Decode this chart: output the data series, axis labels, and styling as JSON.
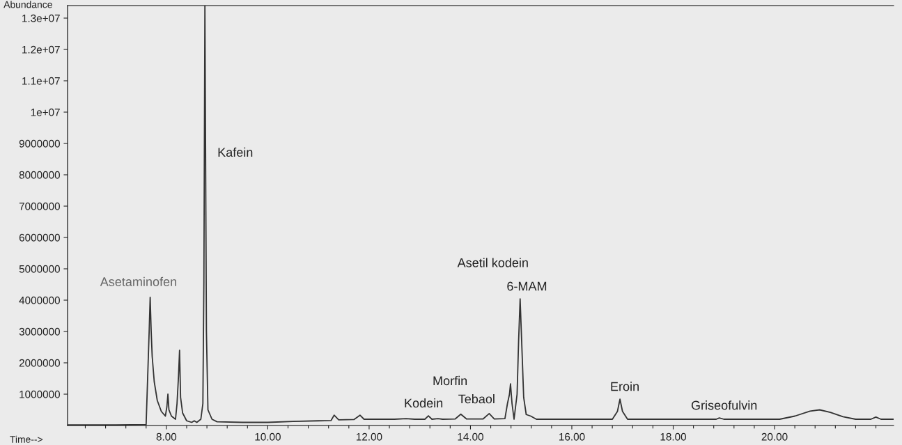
{
  "chart_data": {
    "type": "line",
    "xlabel": "Time-->",
    "ylabel": "Abundance",
    "series": [
      {
        "color": "#333333",
        "x": [
          6.05,
          7.0,
          7.6,
          7.63,
          7.66,
          7.68,
          7.7,
          7.72,
          7.76,
          7.82,
          7.9,
          7.98,
          8.01,
          8.03,
          8.05,
          8.1,
          8.18,
          8.21,
          8.24,
          8.26,
          8.28,
          8.32,
          8.4,
          8.5,
          8.55,
          8.6,
          8.68,
          8.72,
          8.74,
          8.76,
          8.79,
          8.82,
          8.9,
          9.0,
          9.5,
          10.0,
          10.5,
          11.0,
          11.25,
          11.31,
          11.4,
          11.7,
          11.82,
          11.9,
          12.5,
          12.73,
          12.9,
          13.1,
          13.17,
          13.24,
          13.36,
          13.45,
          13.7,
          13.81,
          13.92,
          14.25,
          14.37,
          14.47,
          14.68,
          14.73,
          14.77,
          14.79,
          14.82,
          14.86,
          14.92,
          14.95,
          14.98,
          15.01,
          15.05,
          15.1,
          15.19,
          15.3,
          16.0,
          16.8,
          16.9,
          16.95,
          17.0,
          17.1,
          18.0,
          18.85,
          18.91,
          19.0,
          20.1,
          20.4,
          20.7,
          20.89,
          21.1,
          21.35,
          21.6,
          21.9,
          22.0,
          22.1,
          22.35
        ],
        "values": [
          20000,
          20000,
          30000,
          1500000,
          3000000,
          4090000,
          3000000,
          2200000,
          1400000,
          800000,
          450000,
          300000,
          600000,
          1000000,
          500000,
          300000,
          200000,
          700000,
          1600000,
          2400000,
          900000,
          400000,
          150000,
          100000,
          150000,
          100000,
          200000,
          700000,
          4600000,
          13400000,
          3000000,
          500000,
          200000,
          120000,
          100000,
          100000,
          130000,
          150000,
          160000,
          330000,
          180000,
          190000,
          330000,
          200000,
          200000,
          220000,
          200000,
          200000,
          310000,
          200000,
          220000,
          200000,
          210000,
          360000,
          210000,
          210000,
          380000,
          210000,
          220000,
          700000,
          1000000,
          1330000,
          700000,
          200000,
          1000000,
          2700000,
          4040000,
          2700000,
          900000,
          350000,
          300000,
          200000,
          200000,
          200000,
          450000,
          840000,
          450000,
          200000,
          200000,
          200000,
          240000,
          200000,
          200000,
          300000,
          460000,
          500000,
          420000,
          280000,
          200000,
          200000,
          270000,
          200000,
          200000
        ]
      }
    ],
    "xlim": [
      6.05,
      22.35
    ],
    "xticks": [
      {
        "value": 6.4,
        "label": null
      },
      {
        "value": 6.8,
        "label": null
      },
      {
        "value": 7.2,
        "label": null
      },
      {
        "value": 7.6,
        "label": null
      },
      {
        "value": 8,
        "label": "8.00"
      },
      {
        "value": 8.4,
        "label": null
      },
      {
        "value": 8.8,
        "label": null
      },
      {
        "value": 9.2,
        "label": null
      },
      {
        "value": 9.6,
        "label": null
      },
      {
        "value": 10,
        "label": "10.00"
      },
      {
        "value": 10.4,
        "label": null
      },
      {
        "value": 10.8,
        "label": null
      },
      {
        "value": 11.2,
        "label": null
      },
      {
        "value": 11.6,
        "label": null
      },
      {
        "value": 12,
        "label": "12.00"
      },
      {
        "value": 12.4,
        "label": null
      },
      {
        "value": 12.8,
        "label": null
      },
      {
        "value": 13.2,
        "label": null
      },
      {
        "value": 13.6,
        "label": null
      },
      {
        "value": 14,
        "label": "14.00"
      },
      {
        "value": 14.4,
        "label": null
      },
      {
        "value": 14.8,
        "label": null
      },
      {
        "value": 15.2,
        "label": null
      },
      {
        "value": 15.6,
        "label": null
      },
      {
        "value": 16,
        "label": "16.00"
      },
      {
        "value": 16.4,
        "label": null
      },
      {
        "value": 16.8,
        "label": null
      },
      {
        "value": 17.2,
        "label": null
      },
      {
        "value": 17.6,
        "label": null
      },
      {
        "value": 18,
        "label": "18.00"
      },
      {
        "value": 18.4,
        "label": null
      },
      {
        "value": 18.8,
        "label": null
      },
      {
        "value": 19.2,
        "label": null
      },
      {
        "value": 19.6,
        "label": null
      },
      {
        "value": 20,
        "label": "20.00"
      },
      {
        "value": 20.4,
        "label": null
      },
      {
        "value": 20.8,
        "label": null
      },
      {
        "value": 21.2,
        "label": null
      },
      {
        "value": 21.6,
        "label": null
      },
      {
        "value": 22,
        "label": null
      }
    ],
    "ylim": [
      0,
      13400000
    ],
    "yticks": [
      1000000,
      2000000,
      3000000,
      4000000,
      5000000,
      6000000,
      7000000,
      8000000,
      9000000,
      {
        "value": 10000000,
        "label": "1e+07"
      },
      {
        "value": 11000000,
        "label": "1.1e+07"
      },
      {
        "value": 12000000,
        "label": "1.2e+07"
      },
      {
        "value": 13000000,
        "label": "1.3e+07"
      }
    ],
    "grid": false,
    "legend": false,
    "marker": "none",
    "line_style": "solid",
    "annotations": [
      {
        "text": "Asetaminofen",
        "x": 7.68,
        "y": 4090000
      },
      "Kafein",
      {
        "text": "Kodein",
        "x": 13.17,
        "y": 310000
      },
      "Morfin",
      {
        "text": "Tebaol",
        "x": 14.37,
        "y": 380000
      },
      "Asetil kodein",
      {
        "text": "6-MAM",
        "x": 14.98,
        "y": 4040000
      },
      {
        "text": "Eroin",
        "x": 16.95,
        "y": 840000
      },
      {
        "text": "Griseofulvin",
        "x": 18.91,
        "y": 240000
      }
    ]
  }
}
